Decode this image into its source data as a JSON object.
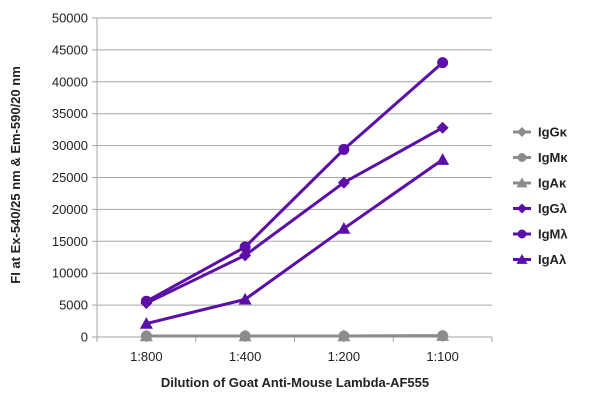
{
  "chart_data": {
    "type": "line",
    "categories": [
      "1:800",
      "1:400",
      "1:200",
      "1:100"
    ],
    "xlabel": "Dilution of Goat Anti-Mouse Lambda-AF555",
    "ylabel": "FI at Ex-540/25 nm & Em-590/20 nm",
    "ylim": [
      0,
      50000
    ],
    "yticks": [
      0,
      5000,
      10000,
      15000,
      20000,
      25000,
      30000,
      35000,
      40000,
      45000,
      50000
    ],
    "grid": true,
    "legend_position": "right",
    "series": [
      {
        "name": "IgGκ",
        "values": [
          150,
          150,
          150,
          180
        ],
        "color": "#8c8c8c",
        "marker": "diamond"
      },
      {
        "name": "IgMκ",
        "values": [
          150,
          150,
          150,
          200
        ],
        "color": "#8c8c8c",
        "marker": "circle"
      },
      {
        "name": "IgAκ",
        "values": [
          150,
          150,
          150,
          200
        ],
        "color": "#8c8c8c",
        "marker": "triangle"
      },
      {
        "name": "IgGλ",
        "values": [
          5300,
          12800,
          24200,
          32800
        ],
        "color": "#5b0fa8",
        "marker": "diamond"
      },
      {
        "name": "IgMλ",
        "values": [
          5600,
          14100,
          29400,
          43000
        ],
        "color": "#5b0fa8",
        "marker": "circle"
      },
      {
        "name": "IgAλ",
        "values": [
          2100,
          5900,
          17000,
          27800
        ],
        "color": "#5b0fa8",
        "marker": "triangle"
      }
    ]
  }
}
